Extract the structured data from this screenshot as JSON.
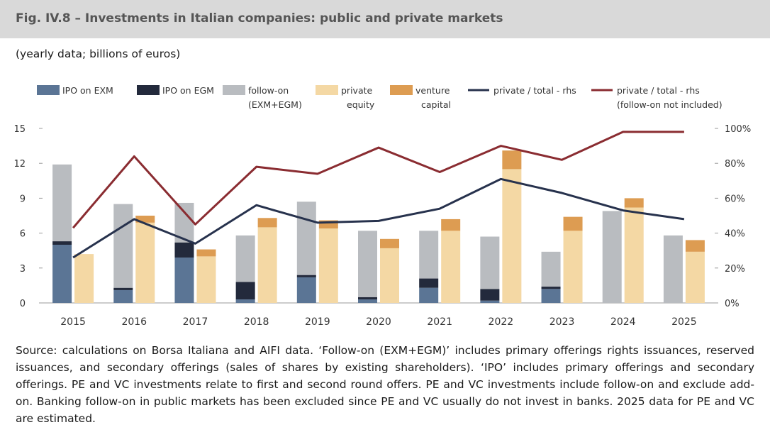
{
  "header": {
    "title": "Fig. IV.8 – Investments in Italian companies: public and private markets"
  },
  "subtitle": "(yearly data; billions of euros)",
  "source": "Source: calculations on Borsa Italiana and AIFI data. ‘Follow-on (EXM+EGM)’ includes primary offerings rights issuances, reserved issuances, and secondary offerings (sales of shares by existing shareholders). ‘IPO’ includes primary offerings and secondary offerings. PE and VC investments relate to first and second round offers. PE and VC investments include follow-on and exclude add-on. Banking follow-on in public markets has been excluded since PE and VC usually do not invest in banks. 2025 data for PE and VC are estimated.",
  "chart_data": {
    "type": "bar",
    "categories": [
      "2015",
      "2016",
      "2017",
      "2018",
      "2019",
      "2020",
      "2021",
      "2022",
      "2023",
      "2024",
      "2025"
    ],
    "ylim": [
      0,
      15
    ],
    "y_ticks": [
      "0",
      "3",
      "6",
      "9",
      "12",
      "15"
    ],
    "y2lim": [
      0,
      100
    ],
    "y2_ticks": [
      "0%",
      "20%",
      "40%",
      "60%",
      "80%",
      "100%"
    ],
    "grid": false,
    "legend_position": "top",
    "series": [
      {
        "name": "IPO on EXM",
        "kind": "stack1",
        "color": "#5b7595",
        "values": [
          5.0,
          1.1,
          3.9,
          0.3,
          2.2,
          0.3,
          1.3,
          0.2,
          1.2,
          0.0,
          0.0
        ]
      },
      {
        "name": "IPO on EGM",
        "kind": "stack1",
        "color": "#232a3c",
        "values": [
          0.3,
          0.2,
          1.3,
          1.5,
          0.2,
          0.2,
          0.8,
          1.0,
          0.2,
          0.0,
          0.0
        ]
      },
      {
        "name": "follow-on (EXM+EGM)",
        "kind": "stack1",
        "color": "#b9bcc0",
        "values": [
          6.6,
          7.2,
          3.4,
          4.0,
          6.3,
          5.7,
          4.1,
          4.5,
          3.0,
          7.9,
          5.8
        ]
      },
      {
        "name": "private equity",
        "kind": "stack2",
        "color": "#f4d8a4",
        "values": [
          4.2,
          6.9,
          4.0,
          6.5,
          6.4,
          4.7,
          6.2,
          11.5,
          6.2,
          8.2,
          4.4
        ]
      },
      {
        "name": "venture capital",
        "kind": "stack2",
        "color": "#dd9c52",
        "values": [
          0.0,
          0.6,
          0.6,
          0.8,
          0.7,
          0.8,
          1.0,
          1.6,
          1.2,
          0.8,
          1.0
        ]
      },
      {
        "name": "private / total - rhs",
        "kind": "line",
        "color": "#27324d",
        "values": [
          26,
          48,
          34,
          56,
          46,
          47,
          54,
          71,
          63,
          53,
          48
        ]
      },
      {
        "name": "private / total - rhs (follow-on not included)",
        "kind": "line",
        "color": "#8a2c31",
        "values": [
          43,
          84,
          45,
          78,
          74,
          89,
          75,
          90,
          82,
          98,
          98
        ]
      }
    ],
    "legend_labels": [
      {
        "series": 0,
        "lines": [
          "IPO on EXM"
        ]
      },
      {
        "series": 1,
        "lines": [
          "IPO on EGM"
        ]
      },
      {
        "series": 2,
        "lines": [
          "follow-on",
          "(EXM+EGM)"
        ]
      },
      {
        "series": 3,
        "lines": [
          "private",
          "equity"
        ]
      },
      {
        "series": 4,
        "lines": [
          "venture",
          "capital"
        ]
      },
      {
        "series": 5,
        "lines": [
          "private / total - rhs"
        ]
      },
      {
        "series": 6,
        "lines": [
          "private / total - rhs",
          "(follow-on not included)"
        ]
      }
    ]
  }
}
